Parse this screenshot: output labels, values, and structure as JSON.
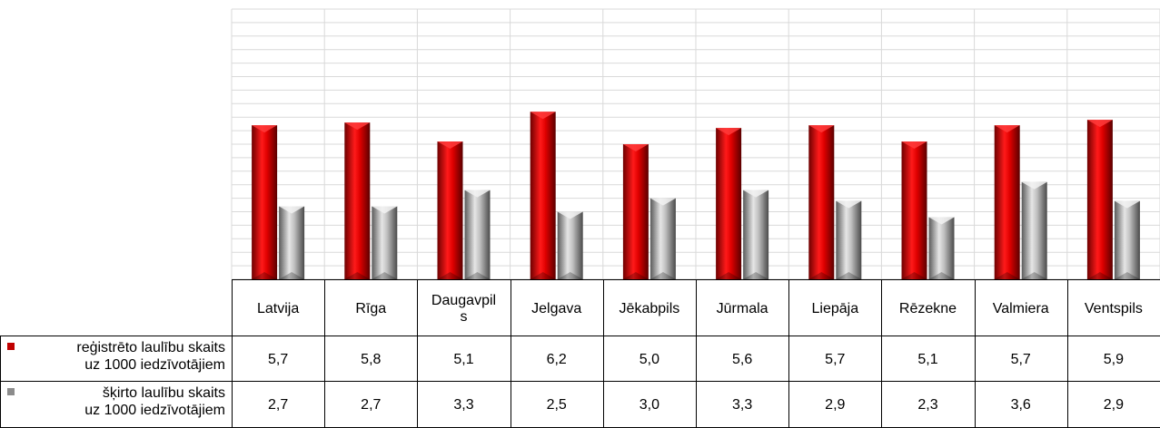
{
  "chart_data": {
    "type": "bar",
    "categories": [
      "Latvija",
      "Rīga",
      "Daugavpils",
      "Jelgava",
      "Jēkabpils",
      "Jūrmala",
      "Liepāja",
      "Rēzekne",
      "Valmiera",
      "Ventspils"
    ],
    "category_display": [
      "Latvija",
      "Rīga",
      "Daugavpil\ns",
      "Jelgava",
      "Jēkabpils",
      "Jūrmala",
      "Liepāja",
      "Rēzekne",
      "Valmiera",
      "Ventspils"
    ],
    "series": [
      {
        "name": "reģistrēto laulību skaits uz 1000 iedzīvotājiem",
        "name_lines": [
          "reģistrēto laulību skaits",
          "uz 1000 iedzīvotājiem"
        ],
        "values": [
          5.7,
          5.8,
          5.1,
          6.2,
          5.0,
          5.6,
          5.7,
          5.1,
          5.7,
          5.9
        ],
        "labels": [
          "5,7",
          "5,8",
          "5,1",
          "6,2",
          "5,0",
          "5,6",
          "5,7",
          "5,1",
          "5,7",
          "5,9"
        ],
        "color": "#c00000"
      },
      {
        "name": "šķirto laulību skaits uz 1000 iedzīvotājiem",
        "name_lines": [
          "šķirto laulību skaits",
          "uz 1000 iedzīvotājiem"
        ],
        "values": [
          2.7,
          2.7,
          3.3,
          2.5,
          3.0,
          3.3,
          2.9,
          2.3,
          3.6,
          2.9
        ],
        "labels": [
          "2,7",
          "2,7",
          "3,3",
          "2,5",
          "3,0",
          "3,3",
          "2,9",
          "2,3",
          "3,6",
          "2,9"
        ],
        "color": "#8c8c8c"
      }
    ],
    "ylim": [
      0,
      10
    ],
    "grid": true,
    "legend": "data-table",
    "title": "",
    "xlabel": "",
    "ylabel": ""
  }
}
